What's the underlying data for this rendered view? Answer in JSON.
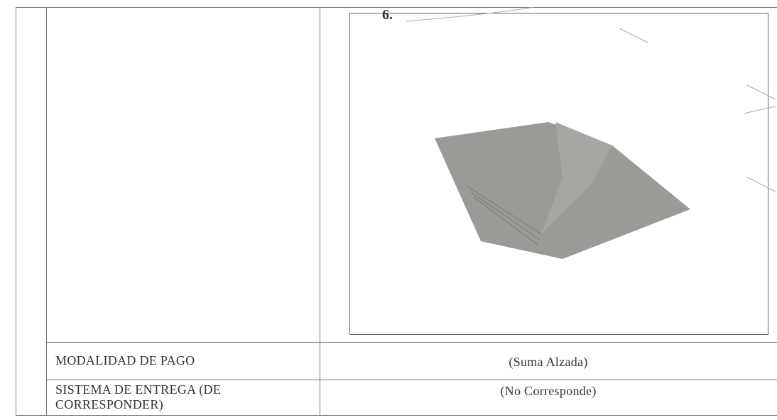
{
  "image_panel": {
    "label": "6."
  },
  "table": {
    "rows": [
      [
        "MODALIDAD DE PAGO",
        "(Suma Alzada)"
      ],
      [
        "SISTEMA DE ENTREGA (DE CORRESPONDER)",
        "(No Corresponde)"
      ]
    ]
  }
}
